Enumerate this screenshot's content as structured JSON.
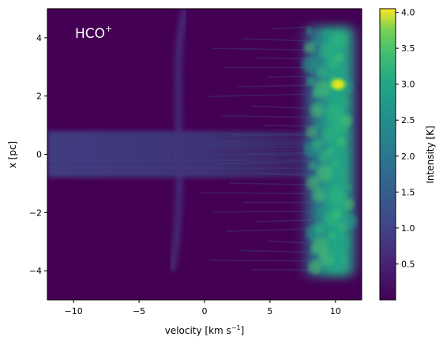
{
  "chart_data": {
    "type": "heatmap",
    "title": "",
    "annotation": {
      "text": "HCO",
      "superscript": "+"
    },
    "xlabel": {
      "text": "velocity [km s",
      "superscript": "−1",
      "suffix": "]"
    },
    "ylabel": "x [pc]",
    "xlim": [
      -12,
      12
    ],
    "ylim": [
      -5,
      5
    ],
    "xticks": [
      -10,
      -5,
      0,
      5,
      10
    ],
    "xtick_labels": [
      "−10",
      "−5",
      "0",
      "5",
      "10"
    ],
    "yticks": [
      -4,
      -2,
      0,
      2,
      4
    ],
    "ytick_labels": [
      "−4",
      "−2",
      "0",
      "2",
      "4"
    ],
    "colorbar": {
      "label": "Intensity [K]",
      "colormap": "viridis",
      "range": [
        0.0,
        4.05
      ],
      "ticks": [
        0.5,
        1.0,
        1.5,
        2.0,
        2.5,
        3.0,
        3.5,
        4.0
      ],
      "tick_labels": [
        "0.5",
        "1.0",
        "1.5",
        "2.0",
        "2.5",
        "3.0",
        "3.5",
        "4.0"
      ]
    },
    "features": [
      {
        "name": "background",
        "v_range": [
          -12,
          12
        ],
        "x_range": [
          -5,
          5
        ],
        "intensity": 0.05
      },
      {
        "name": "emission-band",
        "v_range": [
          7.5,
          11.5
        ],
        "x_range": [
          -4.2,
          4.4
        ],
        "intensity": 1.8
      },
      {
        "name": "emission-peak",
        "v": 10.2,
        "x": 2.4,
        "intensity": 4.0
      },
      {
        "name": "horizontal-streak",
        "v_range": [
          -12,
          8
        ],
        "x_range": [
          -0.8,
          0.8
        ],
        "intensity": 0.45
      },
      {
        "name": "faint-filament",
        "v_range": [
          -2.5,
          -1.5
        ],
        "x_range": [
          -4,
          5
        ],
        "intensity": 0.3
      }
    ],
    "colors": {
      "viridis_low": "#440154",
      "viridis_high": "#fde725"
    }
  }
}
